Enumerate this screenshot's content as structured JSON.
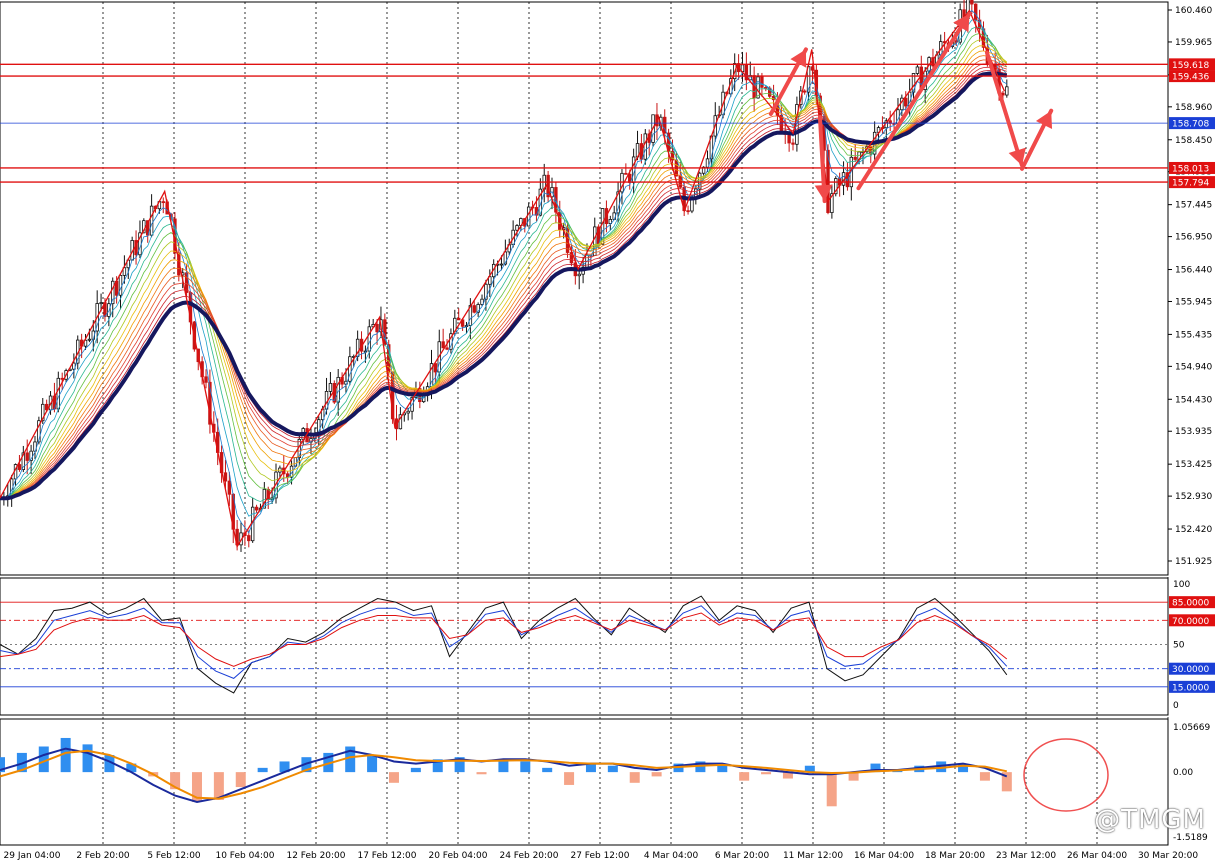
{
  "chart_data": [
    {
      "panel": "price",
      "type": "candlestick",
      "ylim": [
        151.925,
        160.46
      ],
      "y_ticks": [
        "160.460",
        "159.965",
        "159.455",
        "158.960",
        "158.450",
        "157.955",
        "157.445",
        "156.950",
        "156.440",
        "155.945",
        "155.435",
        "154.940",
        "154.430",
        "153.935",
        "153.425",
        "152.930",
        "152.420",
        "151.925"
      ],
      "x_labels": [
        "29 Jan 04:00",
        "2 Feb 20:00",
        "5 Feb 12:00",
        "10 Feb 04:00",
        "12 Feb 20:00",
        "17 Feb 12:00",
        "20 Feb 04:00",
        "24 Feb 20:00",
        "27 Feb 12:00",
        "4 Mar 04:00",
        "6 Mar 20:00",
        "11 Mar 12:00",
        "16 Mar 04:00",
        "18 Mar 20:00",
        "23 Mar 12:00",
        "26 Mar 04:00",
        "30 Mar 20:00"
      ],
      "horizontal_levels": [
        {
          "label": "159.618",
          "value": 159.618,
          "color": "#e01010"
        },
        {
          "label": "159.436",
          "value": 159.436,
          "color": "#e01010"
        },
        {
          "label": "158.708",
          "value": 158.708,
          "color": "#1a3fd6"
        },
        {
          "label": "158.013",
          "value": 158.013,
          "color": "#e01010"
        },
        {
          "label": "157.794",
          "value": 157.794,
          "color": "#e01010"
        }
      ],
      "zigzag": [
        {
          "t": 0,
          "p": 152.9
        },
        {
          "t": 0.141,
          "p": 157.65
        },
        {
          "t": 0.203,
          "p": 152.15
        },
        {
          "t": 0.325,
          "p": 155.7
        },
        {
          "t": 0.338,
          "p": 154.0
        },
        {
          "t": 0.468,
          "p": 157.75
        },
        {
          "t": 0.495,
          "p": 156.45
        },
        {
          "t": 0.564,
          "p": 158.8
        },
        {
          "t": 0.586,
          "p": 157.35
        },
        {
          "t": 0.631,
          "p": 159.6
        },
        {
          "t": 0.679,
          "p": 158.55
        },
        {
          "t": 0.695,
          "p": 159.85
        },
        {
          "t": 0.709,
          "p": 157.5
        },
        {
          "t": 0.83,
          "p": 160.45
        },
        {
          "t": 0.86,
          "p": 159.2
        }
      ],
      "arrows": [
        {
          "from": [
            0.66,
            158.85
          ],
          "to": [
            0.69,
            159.85
          ]
        },
        {
          "from": [
            0.702,
            158.8
          ],
          "to": [
            0.706,
            157.5
          ]
        },
        {
          "from": [
            0.735,
            157.7
          ],
          "to": [
            0.83,
            160.4
          ]
        },
        {
          "from": [
            0.845,
            159.8
          ],
          "to": [
            0.875,
            158.05
          ]
        },
        {
          "from": [
            0.875,
            158.0
          ],
          "to": [
            0.9,
            158.9
          ]
        }
      ],
      "colors": {
        "up": "#111111",
        "down": "#c81414",
        "slow_ma": "#15175e",
        "fast_ma": "#f0a000",
        "level": "#e01010",
        "current": "#1a3fd6",
        "arrow": "#f04a4a"
      }
    },
    {
      "panel": "stochastic",
      "type": "line",
      "ylim": [
        0,
        100
      ],
      "y_ticks": [
        "100",
        "50",
        "0"
      ],
      "levels": [
        {
          "label": "85.0000",
          "value": 85,
          "color": "#e01010"
        },
        {
          "label": "70.0000",
          "value": 70,
          "color": "#e01010"
        },
        {
          "label": "30.0000",
          "value": 30,
          "color": "#1a3fd6"
        },
        {
          "label": "15.0000",
          "value": 15,
          "color": "#1a3fd6"
        }
      ],
      "series": [
        {
          "color": "#111111",
          "values": [
            50,
            42,
            55,
            78,
            80,
            85,
            75,
            80,
            88,
            70,
            72,
            30,
            18,
            10,
            35,
            40,
            55,
            52,
            60,
            72,
            80,
            88,
            85,
            78,
            82,
            40,
            60,
            80,
            85,
            55,
            70,
            80,
            88,
            72,
            58,
            80,
            70,
            60,
            82,
            90,
            70,
            82,
            78,
            60,
            80,
            85,
            30,
            20,
            25,
            40,
            55,
            80,
            88,
            75,
            60,
            45,
            25
          ]
        },
        {
          "color": "#1a3fd6",
          "values": [
            45,
            42,
            50,
            70,
            74,
            78,
            72,
            75,
            80,
            68,
            68,
            40,
            28,
            22,
            35,
            40,
            52,
            50,
            57,
            68,
            75,
            80,
            80,
            74,
            76,
            48,
            58,
            75,
            78,
            58,
            66,
            74,
            80,
            70,
            60,
            74,
            68,
            62,
            76,
            82,
            68,
            76,
            74,
            62,
            74,
            78,
            40,
            32,
            34,
            45,
            54,
            74,
            80,
            70,
            58,
            48,
            32
          ]
        },
        {
          "color": "#e01010",
          "values": [
            40,
            42,
            46,
            62,
            68,
            72,
            70,
            70,
            74,
            66,
            64,
            48,
            38,
            32,
            38,
            42,
            50,
            50,
            55,
            64,
            70,
            74,
            74,
            72,
            72,
            55,
            58,
            70,
            72,
            60,
            64,
            70,
            74,
            68,
            62,
            70,
            66,
            62,
            72,
            76,
            66,
            72,
            70,
            62,
            70,
            72,
            48,
            40,
            40,
            48,
            54,
            68,
            74,
            68,
            58,
            50,
            38
          ]
        }
      ]
    },
    {
      "panel": "macd",
      "type": "bar",
      "ylim": [
        -1.5189,
        1.05669
      ],
      "y_ticks": [
        "1.05669",
        "0.00",
        "-1.5189"
      ],
      "histogram": [
        0.35,
        0.45,
        0.6,
        0.8,
        0.65,
        0.4,
        0.2,
        -0.1,
        -0.4,
        -0.7,
        -0.65,
        -0.35,
        0.1,
        0.25,
        0.35,
        0.45,
        0.6,
        0.4,
        -0.25,
        0.1,
        0.3,
        0.35,
        -0.05,
        0.3,
        0.25,
        0.1,
        -0.3,
        0.2,
        0.15,
        -0.25,
        -0.1,
        0.2,
        0.25,
        0.2,
        -0.2,
        -0.05,
        -0.15,
        0.15,
        -0.8,
        -0.2,
        0.2,
        0.05,
        0.15,
        0.25,
        0.2,
        -0.2,
        -0.45
      ],
      "series": [
        {
          "color": "#1a2a9c",
          "values": [
            0.05,
            0.2,
            0.4,
            0.55,
            0.45,
            0.25,
            0.0,
            -0.3,
            -0.55,
            -0.7,
            -0.6,
            -0.4,
            -0.2,
            0.0,
            0.2,
            0.35,
            0.5,
            0.4,
            0.25,
            0.2,
            0.25,
            0.3,
            0.25,
            0.3,
            0.3,
            0.25,
            0.15,
            0.2,
            0.2,
            0.1,
            0.05,
            0.15,
            0.2,
            0.2,
            0.1,
            0.05,
            0.0,
            -0.05,
            -0.05,
            0.0,
            0.05,
            0.05,
            0.1,
            0.15,
            0.2,
            0.1,
            -0.1
          ]
        },
        {
          "color": "#f08a00",
          "values": [
            -0.1,
            0.05,
            0.25,
            0.45,
            0.5,
            0.4,
            0.2,
            -0.05,
            -0.35,
            -0.6,
            -0.62,
            -0.5,
            -0.35,
            -0.15,
            0.05,
            0.2,
            0.35,
            0.4,
            0.35,
            0.28,
            0.26,
            0.27,
            0.26,
            0.27,
            0.28,
            0.26,
            0.22,
            0.2,
            0.2,
            0.16,
            0.1,
            0.12,
            0.15,
            0.17,
            0.14,
            0.1,
            0.05,
            0.0,
            -0.02,
            -0.01,
            0.02,
            0.04,
            0.07,
            0.1,
            0.15,
            0.13,
            0.02
          ]
        }
      ],
      "colors": {
        "hist_up": "#2f8ef0",
        "hist_down": "#f5a488"
      }
    }
  ],
  "watermark": "@TMGM"
}
